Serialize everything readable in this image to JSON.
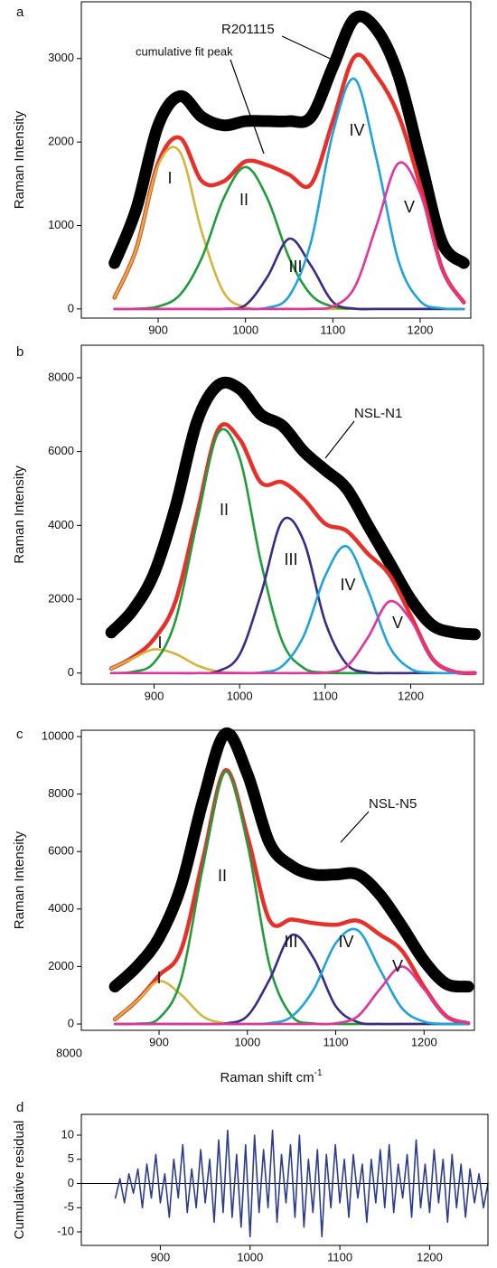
{
  "chart_data": [
    {
      "type": "line",
      "panel_label": "a",
      "y_label": "Raman Intensity",
      "x": [
        850,
        875,
        900,
        925,
        950,
        975,
        1000,
        1025,
        1050,
        1075,
        1100,
        1125,
        1150,
        1175,
        1200,
        1225,
        1250
      ],
      "xlim": [
        812,
        1258
      ],
      "ylim": [
        -110,
        3680
      ],
      "xticks": [
        900,
        1000,
        1100,
        1200
      ],
      "yticks": [
        0,
        1000,
        2000,
        3000
      ],
      "series": [
        {
          "name": "R201115",
          "color": "#000000",
          "values": [
            550,
            1200,
            2200,
            2550,
            2300,
            2200,
            2250,
            2250,
            2250,
            2300,
            2900,
            3480,
            3350,
            2800,
            1800,
            800,
            550
          ]
        },
        {
          "name": "cumulative fit peak",
          "color": "#e8302a",
          "values": [
            136,
            723,
            1749,
            2050,
            1532,
            1528,
            1767,
            1723,
            1609,
            1494,
            2249,
            3023,
            2797,
            2326,
            1482,
            489,
            78
          ]
        },
        {
          "name": "I",
          "color": "#d6b53c",
          "values": [
            136,
            720,
            1720,
            1880,
            920,
            200,
            20,
            0,
            0,
            0,
            0,
            0,
            0,
            0,
            0,
            0,
            0
          ]
        },
        {
          "name": "II",
          "color": "#1f9c3c",
          "values": [
            0,
            3,
            29,
            170,
            612,
            1326,
            1700,
            1326,
            612,
            170,
            29,
            3,
            0,
            0,
            0,
            0,
            0
          ]
        },
        {
          "name": "III",
          "color": "#3b2a86",
          "values": [
            0,
            0,
            0,
            0,
            0,
            2,
            47,
            383,
            842,
            519,
            85,
            4,
            0,
            0,
            0,
            0,
            0
          ]
        },
        {
          "name": "IV",
          "color": "#1ea3dc",
          "values": [
            0,
            0,
            0,
            0,
            0,
            0,
            0,
            14,
            155,
            803,
            2105,
            2756,
            1800,
            582,
            94,
            8,
            0
          ]
        },
        {
          "name": "V",
          "color": "#e2339b",
          "values": [
            0,
            0,
            0,
            0,
            0,
            0,
            0,
            0,
            0,
            2,
            30,
            260,
            997,
            1744,
            1388,
            481,
            78
          ]
        }
      ]
    },
    {
      "type": "line",
      "panel_label": "b",
      "y_label": "Raman Intensity",
      "x": [
        850,
        875,
        900,
        925,
        950,
        975,
        1000,
        1025,
        1050,
        1075,
        1100,
        1125,
        1150,
        1175,
        1200,
        1225,
        1250,
        1275
      ],
      "xlim": [
        815,
        1285
      ],
      "ylim": [
        -300,
        8880
      ],
      "xticks": [
        900,
        1000,
        1100,
        1200
      ],
      "yticks": [
        0,
        2000,
        4000,
        6000,
        8000
      ],
      "series": [
        {
          "name": "NSL-N1",
          "color": "#000000",
          "values": [
            1100,
            1700,
            2700,
            4500,
            6800,
            7800,
            7700,
            7000,
            6700,
            6000,
            5500,
            5000,
            4000,
            3000,
            2000,
            1300,
            1100,
            1050
          ]
        },
        {
          "color": "#e8302a",
          "values": [
            122,
            426,
            924,
            1940,
            4275,
            6601,
            6337,
            5160,
            5171,
            4717,
            4046,
            3856,
            3233,
            2665,
            1557,
            401,
            39,
            1
          ]
        },
        {
          "name": "I",
          "color": "#d6b53c",
          "values": [
            122,
            394,
            642,
            520,
            211,
            43,
            4,
            0,
            0,
            0,
            0,
            0,
            0,
            0,
            0,
            0,
            0,
            0
          ]
        },
        {
          "name": "II",
          "color": "#1f9c3c",
          "values": [
            0,
            32,
            282,
            1420,
            4064,
            6505,
            5830,
            3000,
            850,
            137,
            14,
            0,
            0,
            0,
            0,
            0,
            0,
            0
          ]
        },
        {
          "name": "III",
          "color": "#3b2a86",
          "values": [
            0,
            0,
            0,
            0,
            0,
            53,
            503,
            2144,
            4127,
            3570,
            1390,
            246,
            19,
            0,
            0,
            0,
            0,
            0
          ]
        },
        {
          "name": "IV",
          "color": "#1ea3dc",
          "values": [
            0,
            0,
            0,
            0,
            0,
            0,
            0,
            16,
            194,
            1010,
            2630,
            3434,
            2250,
            725,
            117,
            10,
            0,
            0
          ]
        },
        {
          "name": "V",
          "color": "#e2339b",
          "values": [
            0,
            0,
            0,
            0,
            0,
            0,
            0,
            0,
            0,
            0,
            12,
            176,
            964,
            1940,
            1440,
            391,
            39,
            1
          ]
        }
      ]
    },
    {
      "type": "line",
      "panel_label": "c",
      "y_label": "Raman Intensity",
      "x_label": "Raman shift  cm",
      "x_label_sup": "-1",
      "extra_label": "8000",
      "x": [
        850,
        875,
        900,
        925,
        950,
        975,
        1000,
        1025,
        1050,
        1075,
        1100,
        1125,
        1150,
        1175,
        1200,
        1225,
        1250
      ],
      "xlim": [
        812,
        1257
      ],
      "ylim": [
        -220,
        10220
      ],
      "xticks": [
        900,
        1000,
        1100,
        1200
      ],
      "yticks": [
        0,
        2000,
        4000,
        6000,
        8000,
        10000
      ],
      "series": [
        {
          "name": "NSL-N5",
          "color": "#000000",
          "values": [
            1300,
            2000,
            3000,
            4800,
            7800,
            10100,
            8700,
            6300,
            5500,
            5200,
            5200,
            5200,
            4500,
            3400,
            2200,
            1400,
            1300
          ]
        },
        {
          "color": "#e8302a",
          "values": [
            159,
            812,
            1690,
            2580,
            5775,
            8823,
            6550,
            3617,
            3635,
            3509,
            3452,
            3593,
            3110,
            2550,
            1290,
            276,
            22
          ]
        },
        {
          "name": "I",
          "color": "#d6b53c",
          "values": [
            159,
            800,
            1490,
            1020,
            255,
            24,
            0,
            0,
            0,
            0,
            0,
            0,
            0,
            0,
            0,
            0,
            0
          ]
        },
        {
          "name": "II",
          "color": "#1f9c3c",
          "values": [
            0,
            12,
            200,
            1560,
            5520,
            8780,
            6270,
            2050,
            290,
            19,
            0,
            0,
            0,
            0,
            0,
            0,
            0
          ]
        },
        {
          "name": "III",
          "color": "#3b2a86",
          "values": [
            0,
            0,
            0,
            0,
            0,
            19,
            280,
            1540,
            3090,
            2290,
            620,
            63,
            0,
            0,
            0,
            0,
            0
          ]
        },
        {
          "name": "IV",
          "color": "#1ea3dc",
          "values": [
            0,
            0,
            0,
            0,
            0,
            0,
            0,
            27,
            255,
            1200,
            2810,
            3260,
            1900,
            550,
            80,
            6,
            0
          ]
        },
        {
          "name": "V",
          "color": "#e2339b",
          "values": [
            0,
            0,
            0,
            0,
            0,
            0,
            0,
            0,
            0,
            0,
            22,
            270,
            1210,
            2000,
            1210,
            270,
            22
          ]
        }
      ]
    },
    {
      "type": "line",
      "panel_label": "d",
      "y_label": "Cumulative residual",
      "x": [
        850,
        855,
        860,
        865,
        870,
        875,
        880,
        885,
        890,
        895,
        900,
        905,
        910,
        915,
        920,
        925,
        930,
        935,
        940,
        945,
        950,
        955,
        960,
        965,
        970,
        975,
        980,
        985,
        990,
        995,
        1000,
        1005,
        1010,
        1015,
        1020,
        1025,
        1030,
        1035,
        1040,
        1045,
        1050,
        1055,
        1060,
        1065,
        1070,
        1075,
        1080,
        1085,
        1090,
        1095,
        1100,
        1105,
        1110,
        1115,
        1120,
        1125,
        1130,
        1135,
        1140,
        1145,
        1150,
        1155,
        1160,
        1165,
        1170,
        1175,
        1180,
        1185,
        1190,
        1195,
        1200,
        1205,
        1210,
        1215,
        1220,
        1225,
        1230,
        1235,
        1240,
        1245,
        1250,
        1255,
        1260,
        1265
      ],
      "xlim": [
        812,
        1265
      ],
      "ylim": [
        -12.8,
        14.3
      ],
      "xticks": [
        900,
        1000,
        1100,
        1200
      ],
      "yticks": [
        -10,
        -5,
        0,
        5,
        10
      ],
      "series": [
        {
          "color": "#2c3d8f",
          "values": [
            -3,
            1,
            -4,
            2,
            -2,
            3,
            -5,
            4,
            -3,
            6,
            -4,
            2,
            -7,
            5,
            -3,
            8,
            -6,
            3,
            -5,
            7,
            -4,
            5,
            -8,
            9,
            -6,
            11,
            -7,
            6,
            -9,
            8,
            -11,
            10,
            -6,
            7,
            -5,
            11,
            -8,
            6,
            -4,
            8,
            -7,
            10,
            -9,
            5,
            -6,
            7,
            -11,
            6,
            -5,
            8,
            -4,
            5,
            -7,
            6,
            -3,
            4,
            -8,
            5,
            -4,
            7,
            -5,
            8,
            -6,
            4,
            -3,
            6,
            -7,
            9,
            -5,
            4,
            -6,
            7,
            -4,
            5,
            -8,
            6,
            -5,
            4,
            -7,
            3,
            -4,
            2,
            -5,
            0
          ]
        }
      ]
    }
  ]
}
